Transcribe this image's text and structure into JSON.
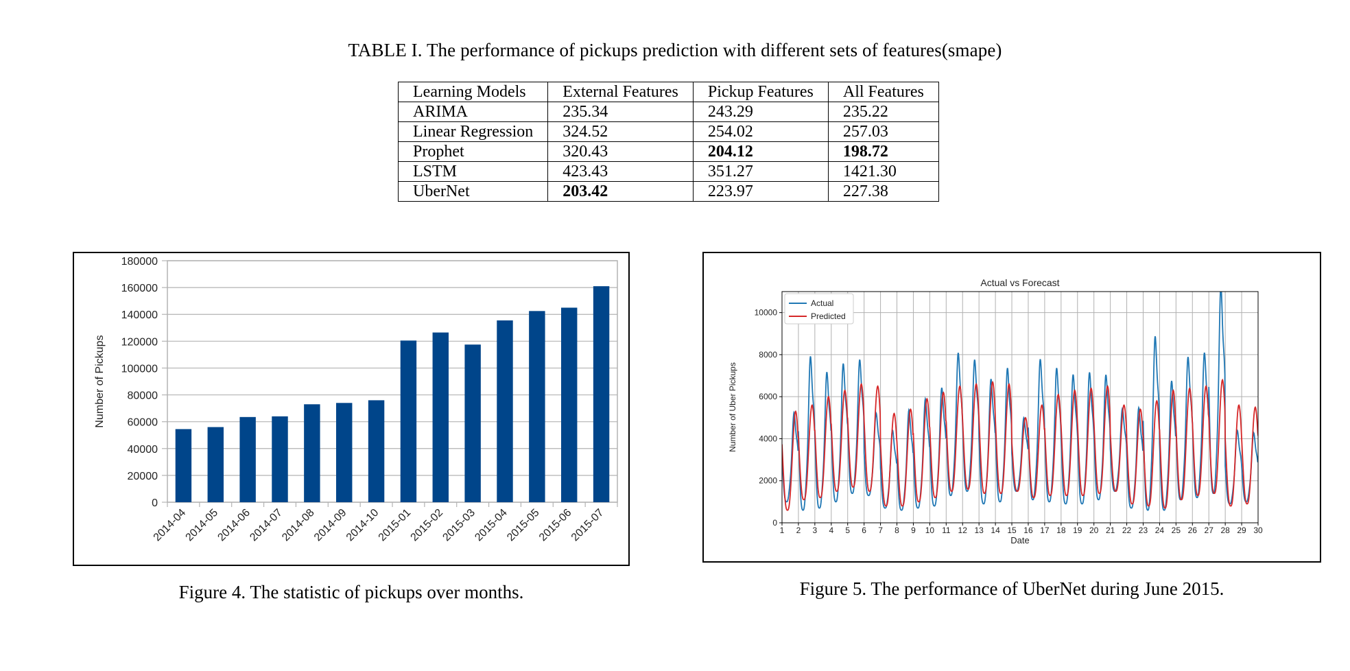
{
  "table": {
    "title": "TABLE I. The performance of pickups prediction with different sets of features(smape)",
    "headers": [
      "Learning Models",
      "External Features",
      "Pickup Features",
      "All Features"
    ],
    "rows": [
      {
        "model": "ARIMA",
        "external": "235.34",
        "pickup": "243.29",
        "all": "235.22"
      },
      {
        "model": "Linear Regression",
        "external": "324.52",
        "pickup": "254.02",
        "all": "257.03"
      },
      {
        "model": "Prophet",
        "external": "320.43",
        "pickup": "204.12",
        "all": "198.72"
      },
      {
        "model": "LSTM",
        "external": "423.43",
        "pickup": "351.27",
        "all": "1421.30"
      },
      {
        "model": "UberNet",
        "external": "203.42",
        "pickup": "223.97",
        "all": "227.38"
      }
    ],
    "bold_cells": [
      "2.pickup",
      "2.all",
      "4.external"
    ]
  },
  "figure4": {
    "caption": "Figure 4. The statistic of pickups over months."
  },
  "figure5": {
    "caption": "Figure 5. The performance of UberNet during June 2015."
  },
  "chart_data": [
    {
      "type": "bar",
      "title": "",
      "xlabel": "",
      "ylabel": "Number of Pickups",
      "categories": [
        "2014-04",
        "2014-05",
        "2014-06",
        "2014-07",
        "2014-08",
        "2014-09",
        "2014-10",
        "2015-01",
        "2015-02",
        "2015-03",
        "2015-04",
        "2015-05",
        "2015-06",
        "2015-07"
      ],
      "values": [
        54500,
        56000,
        63500,
        64000,
        73000,
        74000,
        76000,
        120500,
        126500,
        117500,
        135500,
        142500,
        145000,
        161000
      ],
      "ylim": [
        0,
        180000
      ],
      "yticks": [
        0,
        20000,
        40000,
        60000,
        80000,
        100000,
        120000,
        140000,
        160000,
        180000
      ],
      "grid": true,
      "bar_color": "#00458a"
    },
    {
      "type": "line",
      "title": "Actual vs Forecast",
      "xlabel": "Date",
      "ylabel": "Number of Uber Pickups",
      "xlim": [
        1,
        30
      ],
      "ylim": [
        0,
        11000
      ],
      "xticks": [
        1,
        2,
        3,
        4,
        5,
        6,
        7,
        8,
        9,
        10,
        11,
        12,
        13,
        14,
        15,
        16,
        17,
        18,
        19,
        20,
        21,
        22,
        23,
        24,
        25,
        26,
        27,
        28,
        29,
        30
      ],
      "yticks": [
        0,
        2000,
        4000,
        6000,
        8000,
        10000
      ],
      "grid": true,
      "legend_position": "top-left",
      "series": [
        {
          "name": "Actual",
          "color": "#1f77b4",
          "daily_peak": [
            5000,
            7500,
            6800,
            7200,
            7400,
            5000,
            4200,
            5100,
            5600,
            6100,
            7700,
            7400,
            6500,
            7000,
            4800,
            7400,
            7000,
            6700,
            6800,
            6700,
            5200,
            5200,
            8400,
            6400,
            7500,
            7700,
            10700,
            4200,
            4100,
            4500
          ],
          "daily_trough": [
            1000,
            600,
            700,
            1000,
            1400,
            1300,
            700,
            600,
            700,
            800,
            1300,
            1500,
            900,
            1000,
            1500,
            1100,
            1000,
            900,
            900,
            1100,
            1500,
            700,
            600,
            600,
            1100,
            1200,
            1400,
            900,
            1000,
            1600
          ]
        },
        {
          "name": "Predicted",
          "color": "#d62728",
          "daily_peak": [
            5300,
            5600,
            6000,
            6300,
            6600,
            6500,
            5200,
            5400,
            5900,
            6200,
            6500,
            6600,
            6700,
            6600,
            5000,
            5600,
            6100,
            6300,
            6400,
            6500,
            5600,
            5400,
            5800,
            6300,
            6400,
            6500,
            6800,
            5600,
            5500,
            5400
          ],
          "daily_trough": [
            600,
            1100,
            1200,
            1500,
            1700,
            1500,
            800,
            800,
            1000,
            1200,
            1500,
            1600,
            1400,
            1400,
            1500,
            1200,
            1300,
            1300,
            1300,
            1400,
            1500,
            900,
            800,
            700,
            1100,
            1300,
            1400,
            800,
            900,
            1600
          ]
        }
      ]
    }
  ]
}
